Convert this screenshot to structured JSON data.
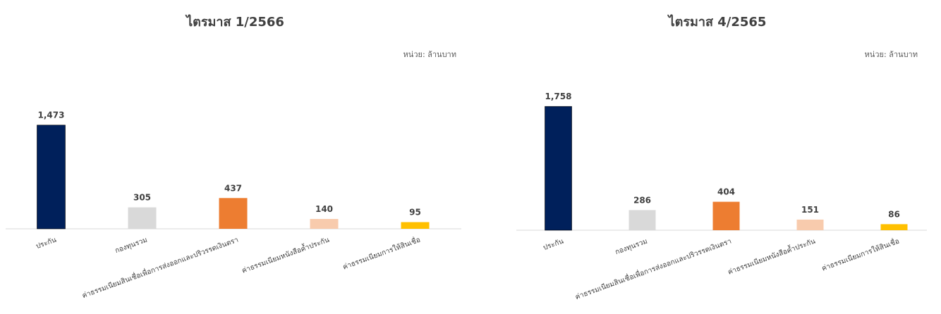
{
  "chart_data": [
    {
      "type": "bar",
      "title": "ไตรมาส 1/2566",
      "unit_label": "หน่วย: ล้านบาท",
      "categories": [
        "ประกัน",
        "กองทุนรวม",
        "ค่าธรรมเนียมสินเชื่อเพื่อการส่งออกและปริวรรตเงินตรา",
        "ค่าธรรมเนียมหนังสือค้ำประกัน",
        "ค่าธรรมเนียมการให้สินเชื่อ"
      ],
      "values": [
        1473,
        305,
        437,
        140,
        95
      ],
      "value_labels": [
        "1,473",
        "305",
        "437",
        "140",
        "95"
      ],
      "colors": [
        "#00205B",
        "#D9D9D9",
        "#ED7D31",
        "#F8CBAD",
        "#FFC000"
      ],
      "ylim": [
        0,
        1800
      ]
    },
    {
      "type": "bar",
      "title": "ไตรมาส 4/2565",
      "unit_label": "หน่วย: ล้านบาท",
      "categories": [
        "ประกัน",
        "กองทุนรวม",
        "ค่าธรรมเนียมสินเชื่อเพื่อการส่งออกและปริวรรตเงินตรา",
        "ค่าธรรมเนียมหนังสือค้ำประกัน",
        "ค่าธรรมเนียมการให้สินเชื่อ"
      ],
      "values": [
        1758,
        286,
        404,
        151,
        86
      ],
      "value_labels": [
        "1,758",
        "286",
        "404",
        "151",
        "86"
      ],
      "colors": [
        "#00205B",
        "#D9D9D9",
        "#ED7D31",
        "#F8CBAD",
        "#FFC000"
      ],
      "ylim": [
        0,
        1800
      ]
    }
  ]
}
